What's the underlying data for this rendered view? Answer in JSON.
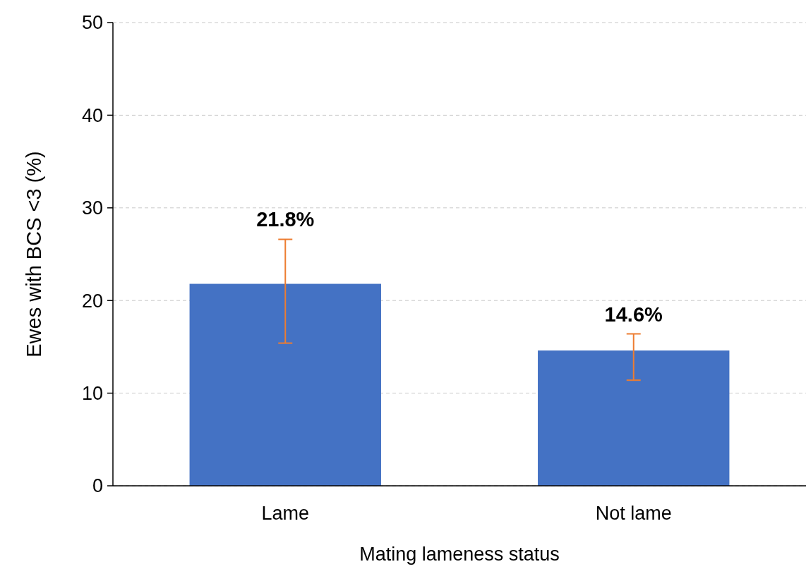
{
  "chart_data": {
    "type": "bar",
    "xlabel": "Mating lameness status",
    "ylabel": "Ewes with BCS <3 (%)",
    "categories": [
      "Lame",
      "Not lame"
    ],
    "series": [
      {
        "color": "#4472c4",
        "values": [
          21.8,
          14.6
        ],
        "errors": [
          [
            15.4,
            26.6
          ],
          [
            11.4,
            16.4
          ]
        ],
        "value_labels": [
          "21.8%",
          "14.6%"
        ]
      }
    ],
    "ylim": [
      0,
      50
    ],
    "yticks": [
      0,
      10,
      20,
      30,
      40,
      50
    ],
    "grid": "y"
  }
}
